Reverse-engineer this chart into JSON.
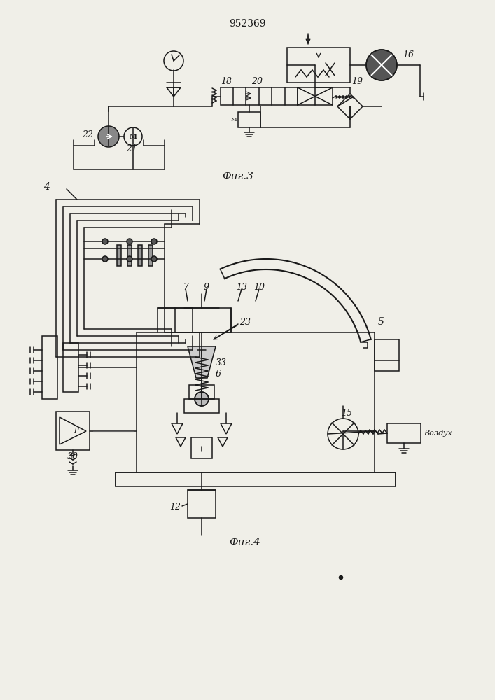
{
  "title": "952369",
  "fig3_label": "Фиг.3",
  "fig4_label": "Фиг.4",
  "vozdukh": "Воздух",
  "bg_color": "#f0efe8"
}
